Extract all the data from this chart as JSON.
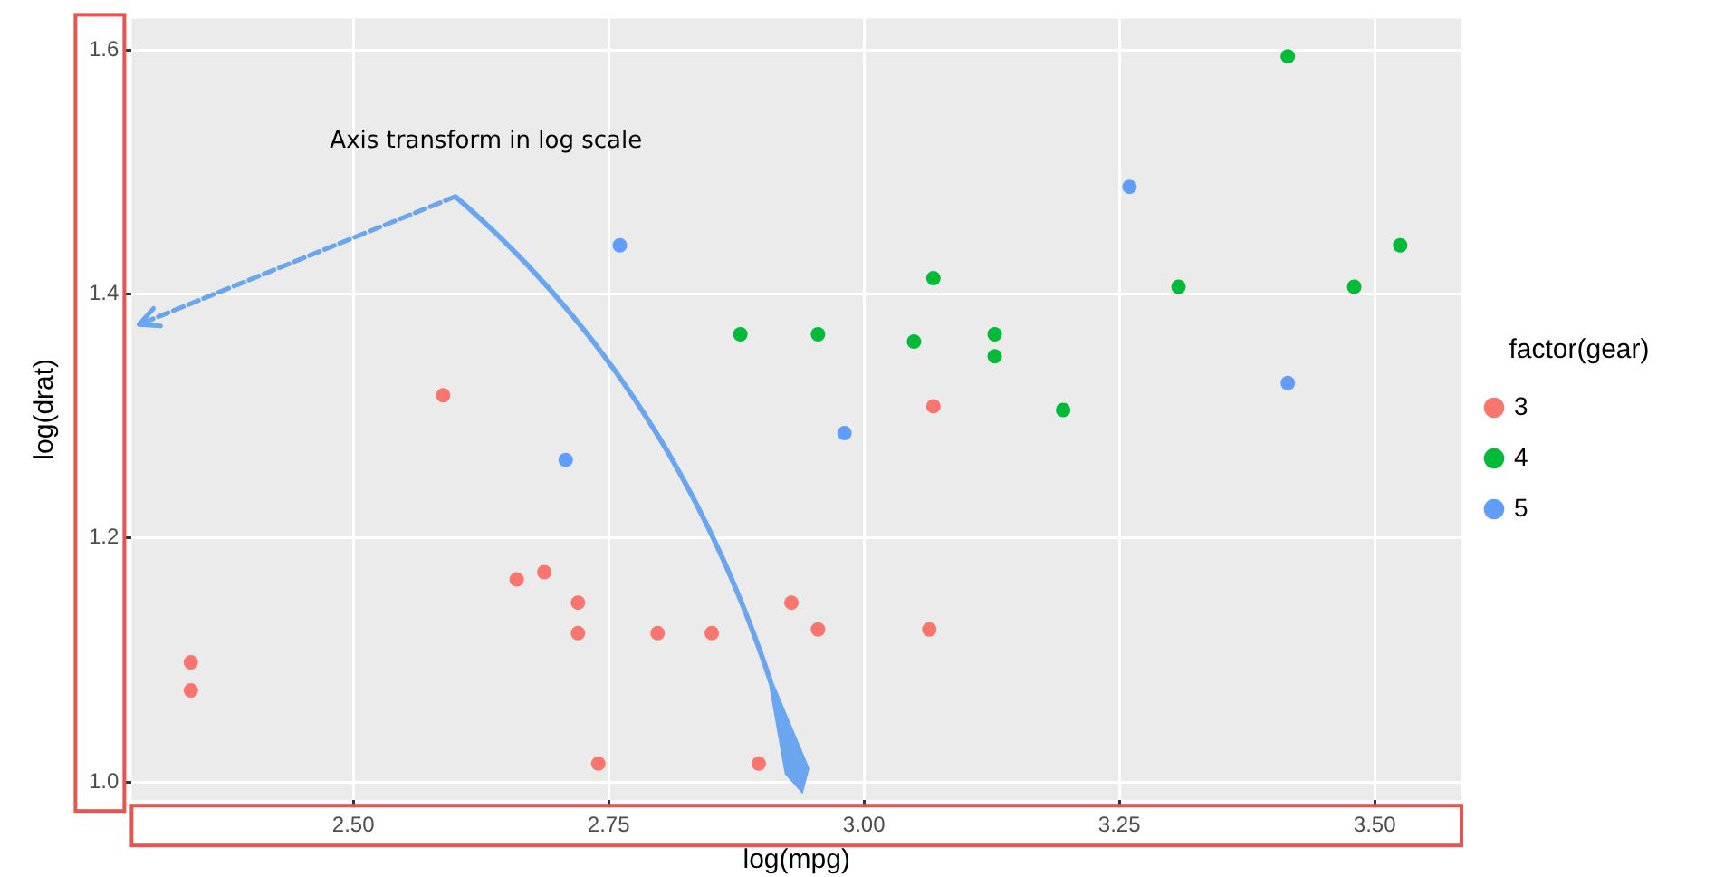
{
  "chart_data": {
    "type": "scatter",
    "xlabel": "log(mpg)",
    "ylabel": "log(drat)",
    "legend_title": "factor(gear)",
    "legend": "right",
    "grid": true,
    "marker": "circle",
    "xlim": [
      2.283,
      3.585
    ],
    "xticks": [
      {
        "value": 2.5,
        "label": "2.50"
      },
      {
        "value": 2.75,
        "label": "2.75"
      },
      {
        "value": 3.0,
        "label": "3.00"
      },
      {
        "value": 3.25,
        "label": "3.25"
      },
      {
        "value": 3.5,
        "label": "3.50"
      }
    ],
    "ylim": [
      0.985,
      1.626
    ],
    "yticks": [
      {
        "value": 1.0,
        "label": "1.0"
      },
      {
        "value": 1.2,
        "label": "1.2"
      },
      {
        "value": 1.4,
        "label": "1.4"
      },
      {
        "value": 1.6,
        "label": "1.6"
      }
    ],
    "annotations": [
      "Axis transform in log scale"
    ],
    "series": [
      {
        "name": "3",
        "color": "#f8766d",
        "x": [
          2.341,
          2.341,
          2.588,
          2.66,
          2.687,
          2.72,
          2.72,
          2.74,
          2.798,
          2.851,
          2.897,
          2.929,
          2.955,
          3.064,
          3.068
        ],
        "values": [
          1.098,
          1.075,
          1.317,
          1.166,
          1.172,
          1.147,
          1.122,
          1.015,
          1.122,
          1.122,
          1.015,
          1.147,
          1.125,
          1.125,
          1.308
        ]
      },
      {
        "name": "4",
        "color": "#00ba38",
        "x": [
          2.879,
          2.955,
          3.049,
          3.068,
          3.128,
          3.128,
          3.195,
          3.308,
          3.415,
          3.48,
          3.525
        ],
        "values": [
          1.367,
          1.367,
          1.361,
          1.413,
          1.367,
          1.349,
          1.305,
          1.406,
          1.595,
          1.406,
          1.44
        ]
      },
      {
        "name": "5",
        "color": "#619cff",
        "x": [
          2.708,
          2.761,
          2.981,
          3.26,
          3.415
        ],
        "values": [
          1.264,
          1.44,
          1.286,
          1.488,
          1.327
        ]
      }
    ]
  }
}
